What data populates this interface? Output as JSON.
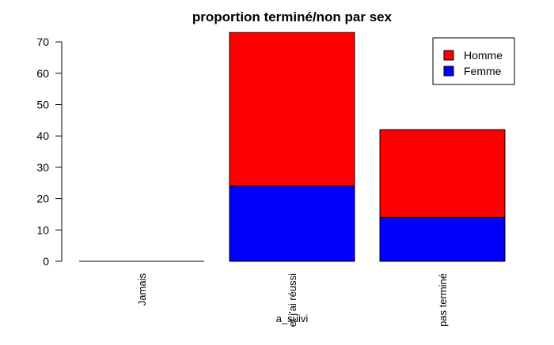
{
  "chart_data": {
    "type": "bar",
    "stacked": true,
    "title": "proportion terminé/non par sex",
    "xlabel": "a_suivi",
    "ylabel": "",
    "categories": [
      "Jamais",
      "et j'ai réussi",
      "pas terminé"
    ],
    "series": [
      {
        "name": "Femme",
        "values": [
          0,
          24,
          14
        ],
        "color": "#0000ff"
      },
      {
        "name": "Homme",
        "values": [
          0,
          49,
          28
        ],
        "color": "#ff0000"
      }
    ],
    "ylim": [
      0,
      73
    ],
    "yticks": [
      0,
      10,
      20,
      30,
      40,
      50,
      60,
      70
    ],
    "grid": false,
    "legend": {
      "position": "top-right",
      "entries": [
        "Homme",
        "Femme"
      ]
    }
  }
}
